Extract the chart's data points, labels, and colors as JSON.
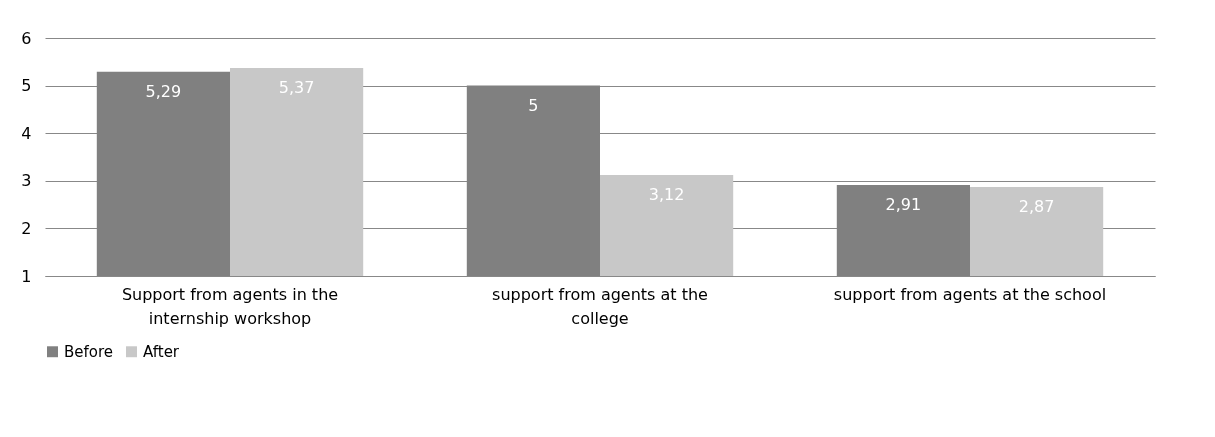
{
  "chart_data": {
    "type": "bar",
    "categories": [
      "Support from agents in the internship workshop",
      "support from agents at the college",
      "support from agents at the school"
    ],
    "series": [
      {
        "name": "Before",
        "color": "#808080",
        "values": [
          5.29,
          5,
          2.91
        ],
        "value_labels": [
          "5,29",
          "5",
          "2,91"
        ]
      },
      {
        "name": "After",
        "color": "#c8c8c8",
        "values": [
          5.37,
          3.12,
          2.87
        ],
        "value_labels": [
          "5,37",
          "3,12",
          "2,87"
        ]
      }
    ],
    "ylim": [
      1,
      6
    ],
    "yticks": [
      1,
      2,
      3,
      4,
      5,
      6
    ],
    "grid": "y",
    "legend": "bottom"
  }
}
